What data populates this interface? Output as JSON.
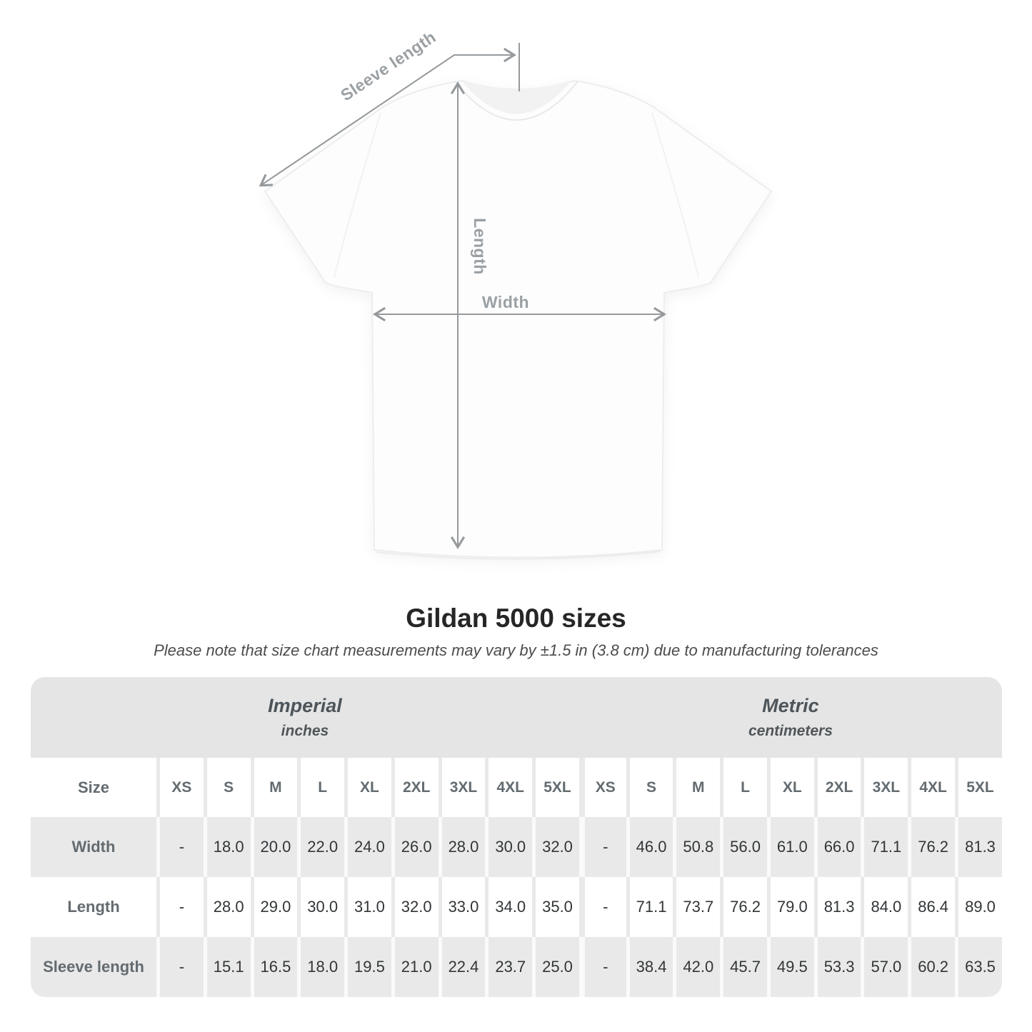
{
  "diagram": {
    "labels": {
      "sleeve_length": "Sleeve length",
      "length": "Length",
      "width": "Width"
    }
  },
  "title": "Gildan 5000 sizes",
  "subtitle": "Please note that size chart measurements may vary by ±1.5 in (3.8 cm) due to manufacturing tolerances",
  "table": {
    "size_header": "Size",
    "groups": [
      {
        "label": "Imperial",
        "unit": "inches"
      },
      {
        "label": "Metric",
        "unit": "centimeters"
      }
    ],
    "sizes": [
      "XS",
      "S",
      "M",
      "L",
      "XL",
      "2XL",
      "3XL",
      "4XL",
      "5XL"
    ],
    "rows": [
      {
        "label": "Width",
        "imperial": [
          "-",
          "18.0",
          "20.0",
          "22.0",
          "24.0",
          "26.0",
          "28.0",
          "30.0",
          "32.0"
        ],
        "metric": [
          "-",
          "46.0",
          "50.8",
          "56.0",
          "61.0",
          "66.0",
          "71.1",
          "76.2",
          "81.3"
        ]
      },
      {
        "label": "Length",
        "imperial": [
          "-",
          "28.0",
          "29.0",
          "30.0",
          "31.0",
          "32.0",
          "33.0",
          "34.0",
          "35.0"
        ],
        "metric": [
          "-",
          "71.1",
          "73.7",
          "76.2",
          "79.0",
          "81.3",
          "84.0",
          "86.4",
          "89.0"
        ]
      },
      {
        "label": "Sleeve length",
        "imperial": [
          "-",
          "15.1",
          "16.5",
          "18.0",
          "19.5",
          "21.0",
          "22.4",
          "23.7",
          "25.0"
        ],
        "metric": [
          "-",
          "38.4",
          "42.0",
          "45.7",
          "49.5",
          "53.3",
          "57.0",
          "60.2",
          "63.5"
        ]
      }
    ]
  },
  "colors": {
    "band_bg": "#e5e5e5",
    "row_gray_bg": "#e9e9e9",
    "header_text": "#636b70",
    "value_text": "#323537",
    "diagram_gray": "#9aa0a4",
    "title_text": "#262626"
  }
}
